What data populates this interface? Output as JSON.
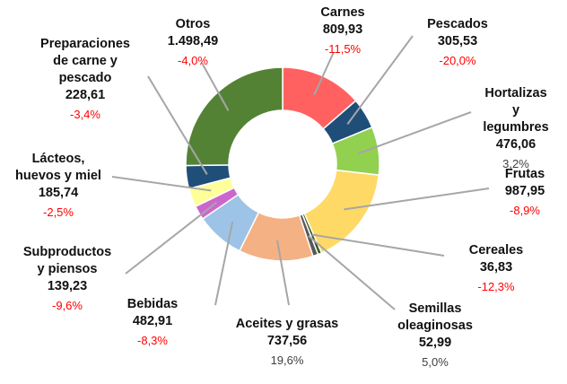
{
  "chart_data": {
    "type": "donut",
    "categories": [
      "Carnes",
      "Pescados",
      "Hortalizas y\nlegumbres",
      "Frutas",
      "Cereales",
      "Semillas\noleaginosas",
      "Aceites y grasas",
      "Bebidas",
      "Subproductos\ny piensos",
      "Lácteos,\nhuevos y miel",
      "Preparaciones\nde carne y\npescado",
      "Otros"
    ],
    "values": [
      809.93,
      305.53,
      476.06,
      987.95,
      36.83,
      52.99,
      737.56,
      482.91,
      139.23,
      185.74,
      228.61,
      1498.49
    ],
    "value_labels": [
      "809,93",
      "305,53",
      "476,06",
      "987,95",
      "36,83",
      "52,99",
      "737,56",
      "482,91",
      "139,23",
      "185,74",
      "228,61",
      "1.498,49"
    ],
    "changes": [
      -11.5,
      -20.0,
      3.2,
      -8.9,
      -12.3,
      5.0,
      19.6,
      -8.3,
      -9.6,
      -2.5,
      -3.4,
      -4.0
    ],
    "change_labels": [
      "-11,5%",
      "-20,0%",
      "3,2%",
      "-8,9%",
      "-12,3%",
      "5,0%",
      "19,6%",
      "-8,3%",
      "-9,6%",
      "-2,5%",
      "-3,4%",
      "-4,0%"
    ],
    "colors": [
      "#ff6161",
      "#1f4e79",
      "#92d050",
      "#ffd966",
      "#375623",
      "#595959",
      "#f4b183",
      "#9dc3e6",
      "#cc66cc",
      "#ffff99",
      "#1f4e79",
      "#548235"
    ]
  }
}
